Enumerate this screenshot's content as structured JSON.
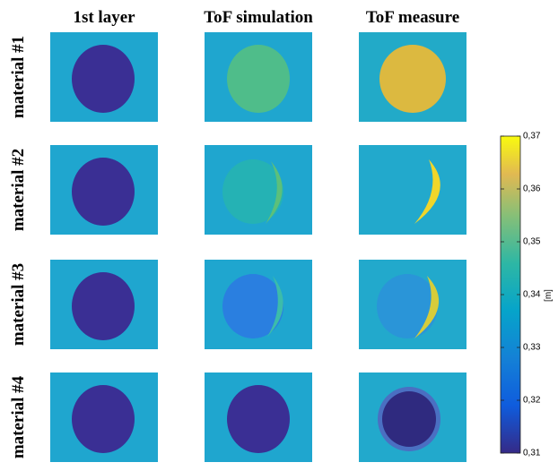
{
  "columns": [
    "1st layer",
    "ToF simulation",
    "ToF measure"
  ],
  "rows": [
    "material #1",
    "material #2",
    "material #3",
    "material #4"
  ],
  "colorbar": {
    "label": "[m]",
    "lim": [
      0.31,
      0.37
    ],
    "ticks": [
      {
        "value": 0.31,
        "label": "0,31"
      },
      {
        "value": 0.32,
        "label": "0,32"
      },
      {
        "value": 0.33,
        "label": "0,33"
      },
      {
        "value": 0.34,
        "label": "0,34"
      },
      {
        "value": 0.35,
        "label": "0,35"
      },
      {
        "value": 0.36,
        "label": "0,36"
      },
      {
        "value": 0.37,
        "label": "0,37"
      }
    ]
  }
}
